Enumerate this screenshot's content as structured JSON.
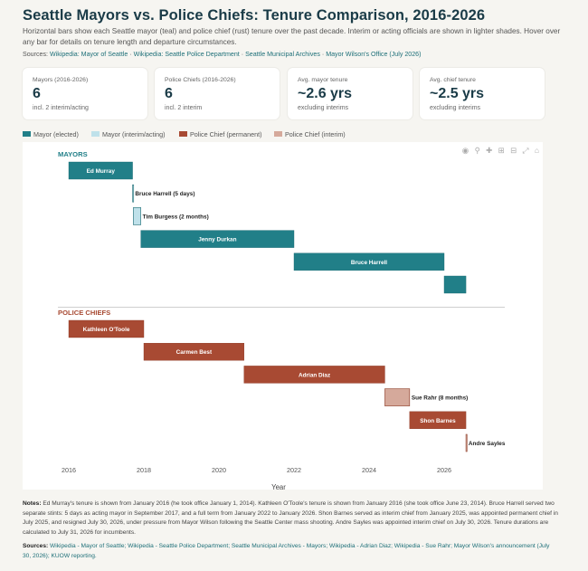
{
  "header": {
    "title": "Seattle Mayors vs. Police Chiefs: Tenure Comparison, 2016-2026",
    "subtitle": "Horizontal bars show each Seattle mayor (teal) and police chief (rust) tenure over the past decade. Interim or acting officials are shown in lighter shades. Hover over any bar for details on tenure length and departure circumstances.",
    "sources_prefix": "Sources: ",
    "sources_links": [
      "Wikipedia: Mayor of Seattle",
      "Wikipedia: Seattle Police Department",
      "Seattle Municipal Archives",
      "Mayor Wilson's Office (July 2026)"
    ],
    "sources_sep": " · "
  },
  "cards": [
    {
      "label": "Mayors (2016-2026)",
      "value": "6",
      "sub": "incl. 2 interim/acting"
    },
    {
      "label": "Police Chiefs (2016-2026)",
      "value": "6",
      "sub": "incl. 2 interim"
    },
    {
      "label": "Avg. mayor tenure",
      "value": "~2.6 yrs",
      "sub": "excluding interims"
    },
    {
      "label": "Avg. chief tenure",
      "value": "~2.5 yrs",
      "sub": "excluding interims"
    }
  ],
  "legend": [
    {
      "label": "Mayor (elected)",
      "color": "#217f88"
    },
    {
      "label": "Mayor (interim/acting)",
      "color": "#bfe1ea"
    },
    {
      "label": "Police Chief (permanent)",
      "color": "#a84a33"
    },
    {
      "label": "Police Chief (interim)",
      "color": "#d5a99b"
    }
  ],
  "modebar_icons": [
    "camera-icon",
    "zoom-icon",
    "pan-icon",
    "zoom-in-icon",
    "zoom-out-icon",
    "autoscale-icon",
    "home-icon"
  ],
  "chart_data": {
    "type": "bar",
    "orientation": "horizontal",
    "xlabel": "Year",
    "xlim": [
      2015.6,
      2027.6
    ],
    "xticks": [
      2016,
      2018,
      2020,
      2022,
      2024,
      2026
    ],
    "grid": false,
    "legend_position": "top-left",
    "groups": [
      {
        "name": "MAYORS",
        "color": "#217f88",
        "bars": [
          {
            "label": "Ed Murray",
            "start": 2016.0,
            "end": 2017.7,
            "kind": "elected",
            "label_position": "inside"
          },
          {
            "label": "Bruce Harrell (5 days)",
            "start": 2017.7,
            "end": 2017.72,
            "kind": "interim",
            "label_position": "outside"
          },
          {
            "label": "Tim Burgess (2 months)",
            "start": 2017.72,
            "end": 2017.92,
            "kind": "interim",
            "label_position": "outside"
          },
          {
            "label": "Jenny Durkan",
            "start": 2017.92,
            "end": 2022.0,
            "kind": "elected",
            "label_position": "inside"
          },
          {
            "label": "Bruce Harrell",
            "start": 2022.0,
            "end": 2026.0,
            "kind": "elected",
            "label_position": "inside"
          },
          {
            "label": "",
            "start": 2026.0,
            "end": 2026.58,
            "kind": "elected",
            "label_position": "inside"
          }
        ]
      },
      {
        "name": "POLICE CHIEFS",
        "color": "#a84a33",
        "bars": [
          {
            "label": "Kathleen O'Toole",
            "start": 2016.0,
            "end": 2018.0,
            "kind": "permanent",
            "label_position": "inside"
          },
          {
            "label": "Carmen Best",
            "start": 2018.0,
            "end": 2020.67,
            "kind": "permanent",
            "label_position": "inside"
          },
          {
            "label": "Adrian Diaz",
            "start": 2020.67,
            "end": 2024.42,
            "kind": "permanent",
            "label_position": "inside"
          },
          {
            "label": "Sue Rahr (8 months)",
            "start": 2024.42,
            "end": 2025.08,
            "kind": "interim",
            "label_position": "outside"
          },
          {
            "label": "Shon Barnes",
            "start": 2025.08,
            "end": 2026.58,
            "kind": "permanent",
            "label_position": "inside"
          },
          {
            "label": "Andre Sayles",
            "start": 2026.58,
            "end": 2026.6,
            "kind": "interim",
            "label_position": "outside"
          }
        ]
      }
    ]
  },
  "notes": {
    "prefix": "Notes:",
    "text": " Ed Murray's tenure is shown from January 2016 (he took office January 1, 2014). Kathleen O'Toole's tenure is shown from January 2016 (she took office June 23, 2014). Bruce Harrell served two separate stints: 5 days as acting mayor in September 2017, and a full term from January 2022 to January 2026. Shon Barnes served as interim chief from January 2025, was appointed permanent chief in July 2025, and resigned July 30, 2026, under pressure from Mayor Wilson following the Seattle Center mass shooting. Andre Sayles was appointed interim chief on July 30, 2026. Tenure durations are calculated to July 31, 2026 for incumbents."
  },
  "sources_footer": {
    "prefix": "Sources:",
    "text": " Wikipedia - Mayor of Seattle; Wikipedia - Seattle Police Department; Seattle Municipal Archives - Mayors; Wikipedia - Adrian Diaz; Wikipedia - Sue Rahr; Mayor Wilson's announcement (July 30, 2026); KUOW reporting."
  }
}
